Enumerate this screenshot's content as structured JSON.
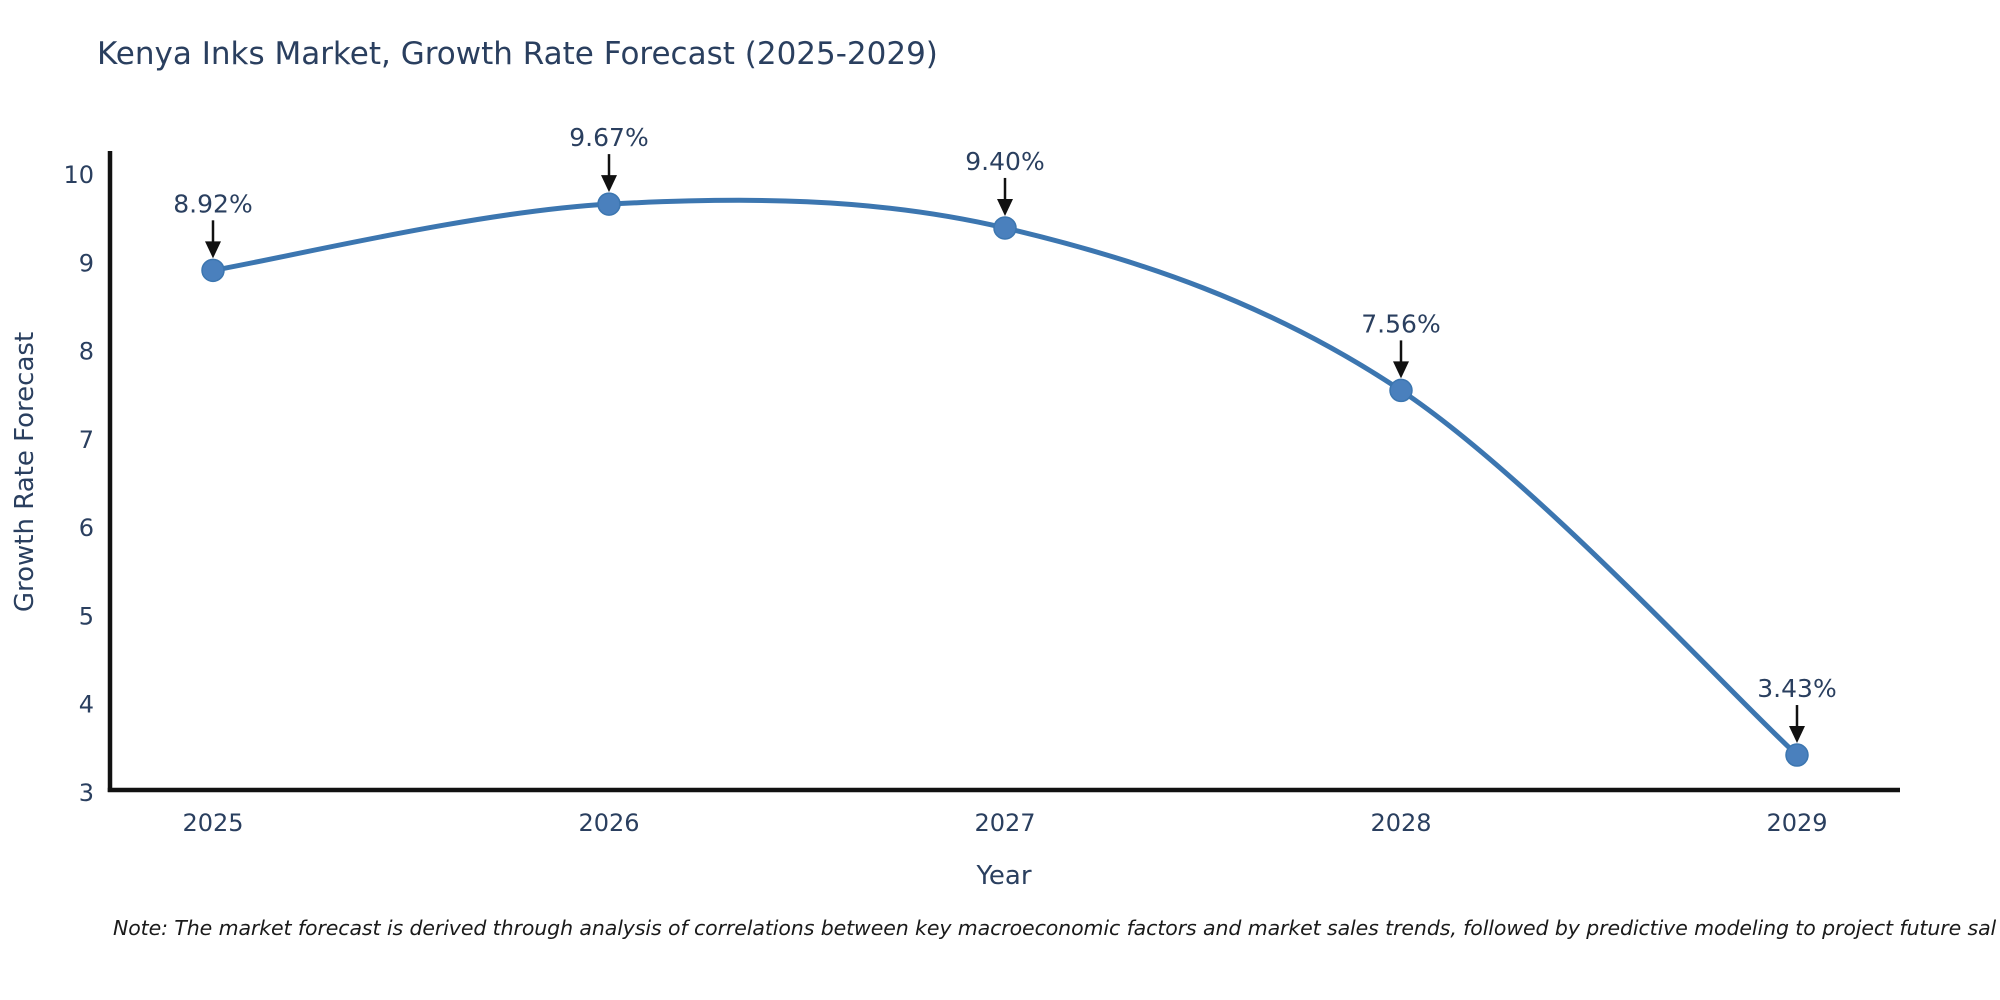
{
  "chart_data": {
    "type": "line",
    "line_shape": "spline",
    "title": "Kenya Inks Market, Growth Rate Forecast (2025-2029)",
    "xlabel": "Year",
    "ylabel": "Growth Rate Forecast",
    "categories": [
      "2025",
      "2026",
      "2027",
      "2028",
      "2029"
    ],
    "series": [
      {
        "name": "Growth Rate Forecast",
        "values": [
          8.92,
          9.67,
          9.4,
          7.56,
          3.43
        ],
        "point_labels": [
          "8.92%",
          "9.67%",
          "9.40%",
          "7.56%",
          "3.43%"
        ]
      }
    ],
    "yticks": [
      3,
      4,
      5,
      6,
      7,
      8,
      9,
      10
    ],
    "ylim": [
      3,
      10.25
    ],
    "xlim_categories": [
      "2024.74",
      "2029.26"
    ],
    "grid": false,
    "legend_position": "none",
    "annotations_have_arrows": true,
    "colors": {
      "line": "#3c76b0",
      "marker": "#4a80bd",
      "axis": "#111111",
      "tick_text": "#2a3f5f",
      "title_text": "#2a3f5f",
      "annotation_text": "#2a3f5f",
      "annotation_arrow": "#111111",
      "background": "#ffffff"
    }
  },
  "note": {
    "text": "Note: The market forecast is derived through analysis of correlations between key macroeconomic factors and market sales trends, followed by predictive modeling to project future sales"
  }
}
